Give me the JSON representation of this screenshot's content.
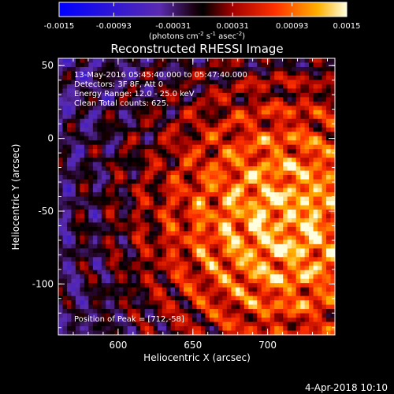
{
  "chart_data": {
    "type": "heatmap",
    "title": "Reconstructed RHESSI Image",
    "xlabel": "Heliocentric X (arcsec)",
    "ylabel": "Heliocentric Y (arcsec)",
    "xlim": [
      560,
      745
    ],
    "ylim": [
      -135,
      55
    ],
    "x_ticks": [
      600,
      650,
      700
    ],
    "y_ticks": [
      50,
      0,
      -50,
      -100
    ],
    "colorbar": {
      "range": [
        -0.0015,
        0.0015
      ],
      "tick_labels": [
        "-0.0015",
        "-0.00093",
        "-0.00031",
        "0.00031",
        "0.00093",
        "0.0015"
      ],
      "units_prefix": "(photons cm",
      "units_exp1": "-2",
      "units_mid1": " s",
      "units_exp2": "-1",
      "units_mid2": " asec",
      "units_exp3": "-2",
      "units_suffix": ")"
    },
    "annotations": {
      "time": "13-May-2016 05:45:40.000 to 05:47:40.000",
      "detectors": "Detectors: 3F 8F, Att 0",
      "energy": "Energy Range: 12.0 - 25.0 keV",
      "clean": "Clean     Total counts: 625.",
      "peak": "Position of Peak = [712,-58]"
    },
    "peak": {
      "x": 712,
      "y": -58
    },
    "grid": false
  },
  "footer": {
    "timestamp": "4-Apr-2018 10:10"
  }
}
